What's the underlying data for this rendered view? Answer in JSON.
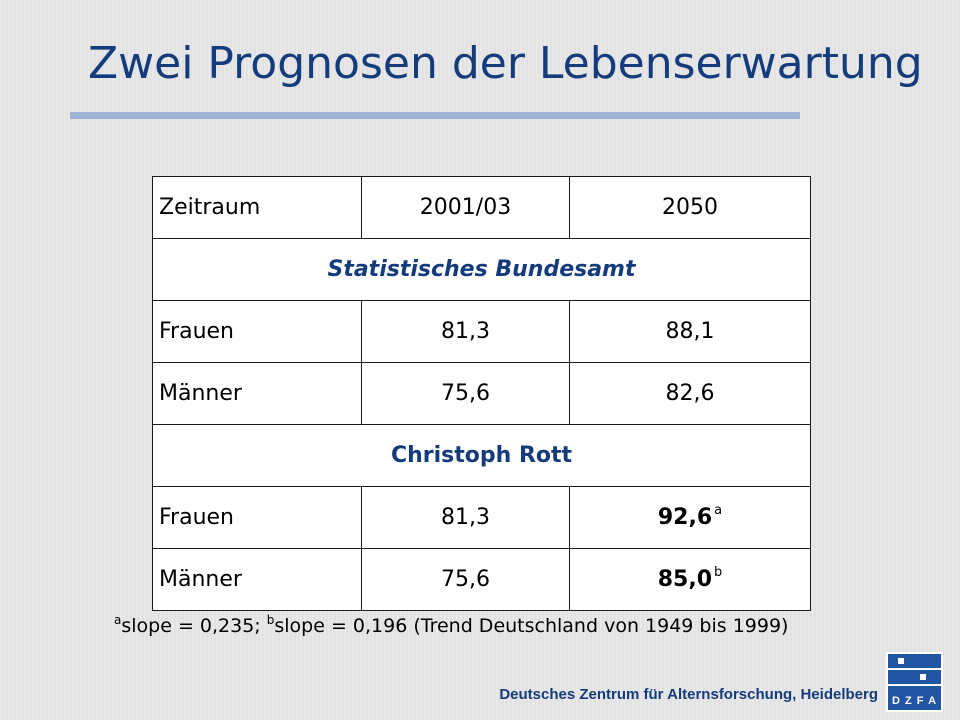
{
  "slide": {
    "title": "Zwei Prognosen der Lebenserwartung",
    "colors": {
      "title": "#143c7c",
      "rule": "#9fb4d6",
      "logo_blue": "#2255a4",
      "background": "#e2e2e2"
    }
  },
  "table": {
    "header": {
      "period": "Zeitraum",
      "year1": "2001/03",
      "year2": "2050"
    },
    "section1": {
      "label": "Statistisches Bundesamt",
      "rows": [
        {
          "label": "Frauen",
          "v1": "81,3",
          "v2": "88,1"
        },
        {
          "label": "Männer",
          "v1": "75,6",
          "v2": "82,6"
        }
      ]
    },
    "section2": {
      "label": "Christoph Rott",
      "rows": [
        {
          "label": "Frauen",
          "v1": "81,3",
          "v2": "92,6",
          "note": "a"
        },
        {
          "label": "Männer",
          "v1": "75,6",
          "v2": "85,0",
          "note": "b"
        }
      ]
    }
  },
  "footnote": {
    "marker_a": "a",
    "text_a": "slope = 0,235; ",
    "marker_b": "b",
    "text_b": "slope = 0,196 (Trend Deutschland von 1949 bis 1999)"
  },
  "footer": {
    "organization": "Deutsches Zentrum für Alternsforschung, Heidelberg",
    "logo_text": "D Z F A"
  }
}
